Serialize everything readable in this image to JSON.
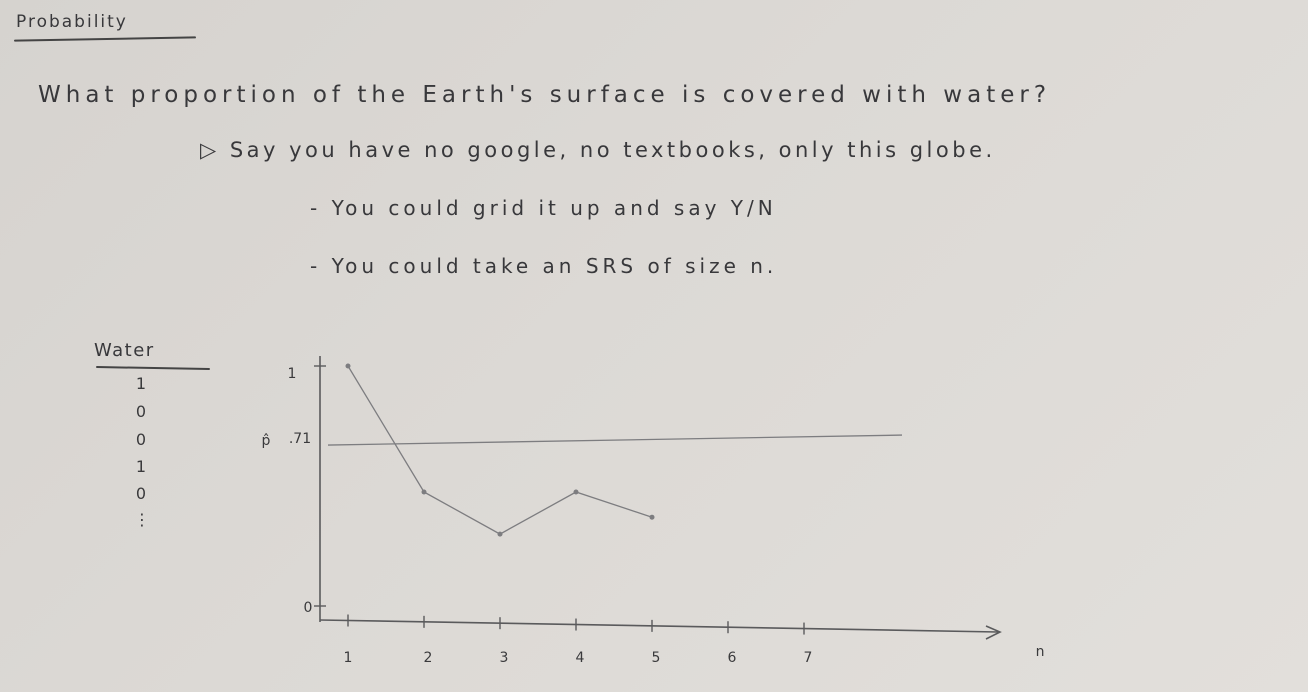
{
  "note": {
    "heading": "Probability",
    "question": "What proportion of the Earth's surface is covered with water?",
    "bullet_1": "▷ Say you have no google, no textbooks, only this globe.",
    "bullet_2": "- You could grid it up and say Y/N",
    "bullet_3": "- You could take an SRS of size n."
  },
  "water_table": {
    "header": "Water",
    "values": [
      "1",
      "0",
      "0",
      "1",
      "0"
    ],
    "continuation": "⋮"
  },
  "chart_data": {
    "type": "line",
    "title": "",
    "ylabel": "p̂",
    "xlabel": "n",
    "x": [
      1,
      2,
      3,
      4,
      5
    ],
    "values": [
      1,
      0.5,
      0.333,
      0.5,
      0.4
    ],
    "x_ticks": [
      "1",
      "2",
      "3",
      "4",
      "5",
      "6",
      "7"
    ],
    "y_ticks": [
      "0",
      ".71",
      "1"
    ],
    "reference_line": {
      "y": 0.71,
      "label": ".71"
    },
    "ylim": [
      0,
      1
    ],
    "xlim": [
      1,
      7
    ],
    "grid": false,
    "colors": {
      "ink": "#5a5a5c",
      "pencil": "#7d7d80"
    }
  }
}
